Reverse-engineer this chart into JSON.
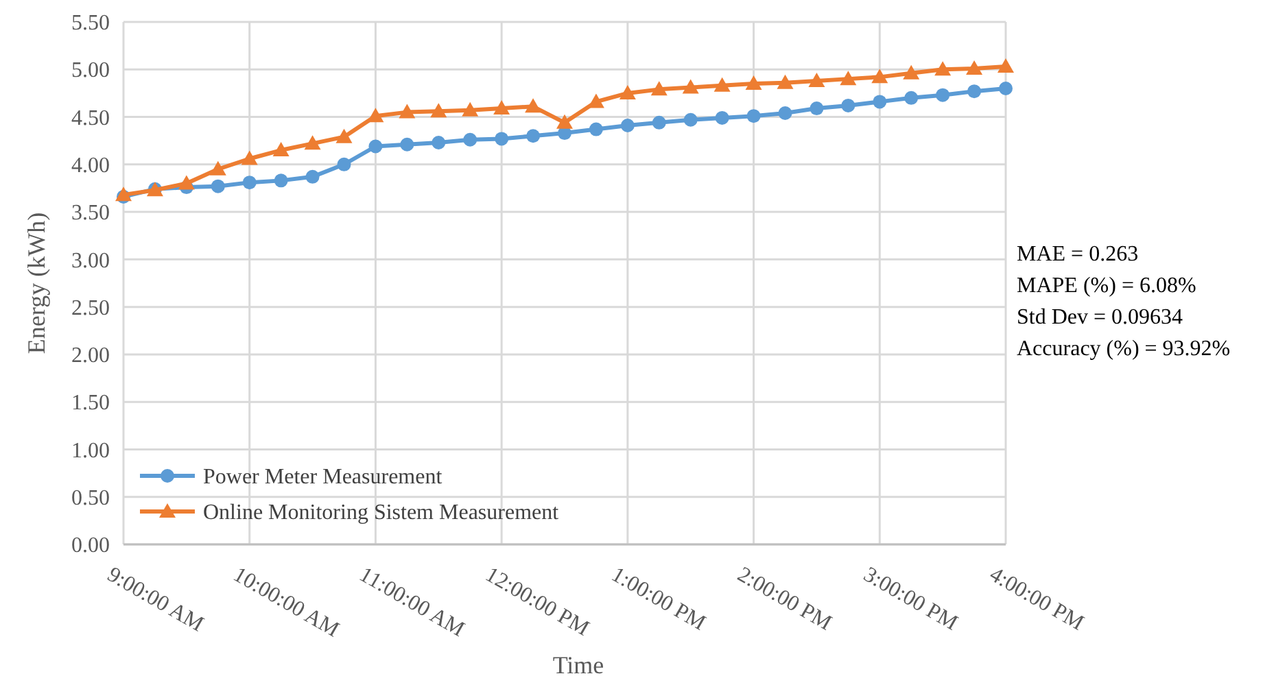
{
  "chart_data": {
    "type": "line",
    "xlabel": "Time",
    "ylabel": "Energy (kWh)",
    "x": [
      9,
      9.25,
      9.5,
      9.75,
      10,
      10.25,
      10.5,
      10.75,
      11,
      11.25,
      11.5,
      11.75,
      12,
      12.25,
      12.5,
      12.75,
      13,
      13.25,
      13.5,
      13.75,
      14,
      14.25,
      14.5,
      14.75,
      15,
      15.25,
      15.5,
      15.75,
      16
    ],
    "series": [
      {
        "name": "Power Meter Measurement",
        "color": "#5b9bd5",
        "marker": "circle",
        "values": [
          3.66,
          3.74,
          3.76,
          3.77,
          3.81,
          3.83,
          3.87,
          4.0,
          4.19,
          4.21,
          4.23,
          4.26,
          4.27,
          4.3,
          4.33,
          4.37,
          4.41,
          4.44,
          4.47,
          4.49,
          4.51,
          4.54,
          4.59,
          4.62,
          4.66,
          4.7,
          4.73,
          4.77,
          4.8
        ]
      },
      {
        "name": "Online Monitoring Sistem Measurement",
        "color": "#ed7d31",
        "marker": "triangle",
        "values": [
          3.68,
          3.73,
          3.8,
          3.95,
          4.06,
          4.15,
          4.22,
          4.29,
          4.51,
          4.55,
          4.56,
          4.57,
          4.59,
          4.61,
          4.44,
          4.66,
          4.75,
          4.79,
          4.81,
          4.83,
          4.85,
          4.86,
          4.88,
          4.9,
          4.92,
          4.96,
          5.0,
          5.01,
          5.03
        ]
      }
    ],
    "xlim": [
      9,
      16
    ],
    "xticks": [
      {
        "value": 9,
        "label": "9:00:00 AM"
      },
      {
        "value": 10,
        "label": "10:00:00 AM"
      },
      {
        "value": 11,
        "label": "11:00:00 AM"
      },
      {
        "value": 12,
        "label": "12:00:00 PM"
      },
      {
        "value": 13,
        "label": "1:00:00 PM"
      },
      {
        "value": 14,
        "label": "2:00:00 PM"
      },
      {
        "value": 15,
        "label": "3:00:00 PM"
      },
      {
        "value": 16,
        "label": "4:00:00 PM"
      }
    ],
    "ylim": [
      0,
      5.5
    ],
    "yticks": [
      {
        "value": 0,
        "label": "0.00"
      },
      {
        "value": 0.5,
        "label": "0.50"
      },
      {
        "value": 1,
        "label": "1.00"
      },
      {
        "value": 1.5,
        "label": "1.50"
      },
      {
        "value": 2,
        "label": "2.00"
      },
      {
        "value": 2.5,
        "label": "2.50"
      },
      {
        "value": 3,
        "label": "3.00"
      },
      {
        "value": 3.5,
        "label": "3.50"
      },
      {
        "value": 4,
        "label": "4.00"
      },
      {
        "value": 4.5,
        "label": "4.50"
      },
      {
        "value": 5,
        "label": "5.00"
      },
      {
        "value": 5.5,
        "label": "5.50"
      }
    ],
    "grid": true,
    "legend": "bottom left",
    "annotations": [
      "MAE = 0.263",
      "MAPE (%) = 6.08%",
      "Std Dev = 0.09634",
      "Accuracy (%) = 93.92%"
    ]
  }
}
